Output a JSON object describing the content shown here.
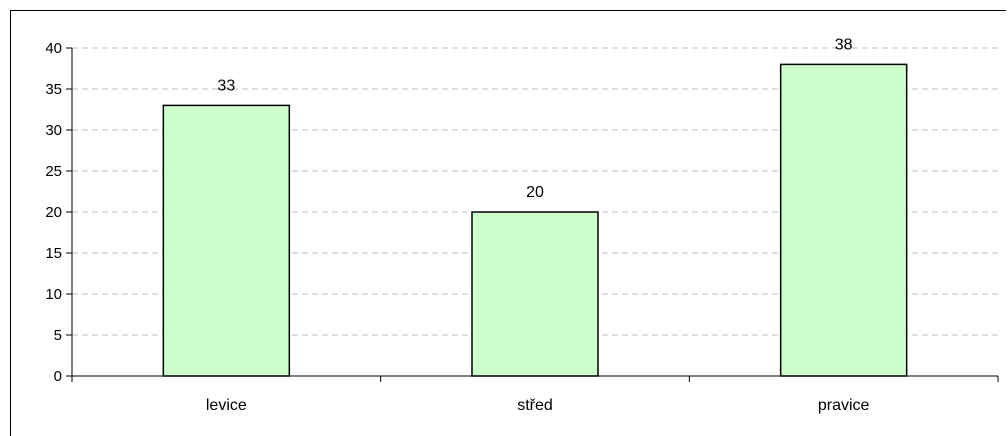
{
  "chart_data": {
    "type": "bar",
    "title": "",
    "xlabel": "",
    "ylabel": "",
    "categories": [
      "levice",
      "střed",
      "pravice"
    ],
    "values": [
      33,
      20,
      38
    ],
    "data_labels": [
      "33",
      "20",
      "38"
    ],
    "ylim": [
      0,
      40
    ],
    "yticks": [
      0,
      5,
      10,
      15,
      20,
      25,
      30,
      35,
      40
    ],
    "ytick_labels": [
      "0",
      "5",
      "10",
      "15",
      "20",
      "25",
      "30",
      "35",
      "40"
    ],
    "grid": true,
    "legend": false,
    "bar_color": "#ccffcc",
    "bar_edge_color": "#000000",
    "grid_color": "#bfbfbf"
  }
}
